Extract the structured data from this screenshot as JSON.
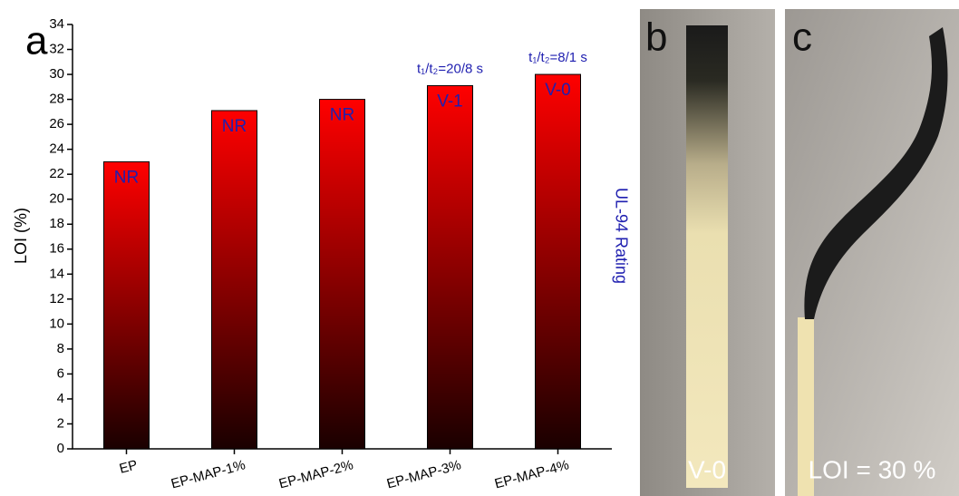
{
  "chart_data": {
    "type": "bar",
    "panel_label": "a",
    "ylabel": "LOI (%)",
    "y2label": "UL-94 Rating",
    "categories": [
      "EP",
      "EP-MAP-1%",
      "EP-MAP-2%",
      "EP-MAP-3%",
      "EP-MAP-4%"
    ],
    "values": [
      23,
      27.1,
      28,
      29.1,
      30
    ],
    "color": "#ff0000",
    "ratings": [
      "NR",
      "NR",
      "NR",
      "V-1",
      "V-0"
    ],
    "rating_notes": [
      null,
      null,
      null,
      "t₁/t₂=20/8 s",
      "t₁/t₂=8/1 s"
    ],
    "ylim": [
      0,
      34
    ],
    "yticks": [
      0,
      2,
      4,
      6,
      8,
      10,
      12,
      14,
      16,
      18,
      20,
      22,
      24,
      26,
      28,
      30,
      32,
      34
    ]
  },
  "panels": [
    {
      "letter": "b",
      "caption": "V-0"
    },
    {
      "letter": "c",
      "caption": "LOI = 30 %"
    }
  ]
}
